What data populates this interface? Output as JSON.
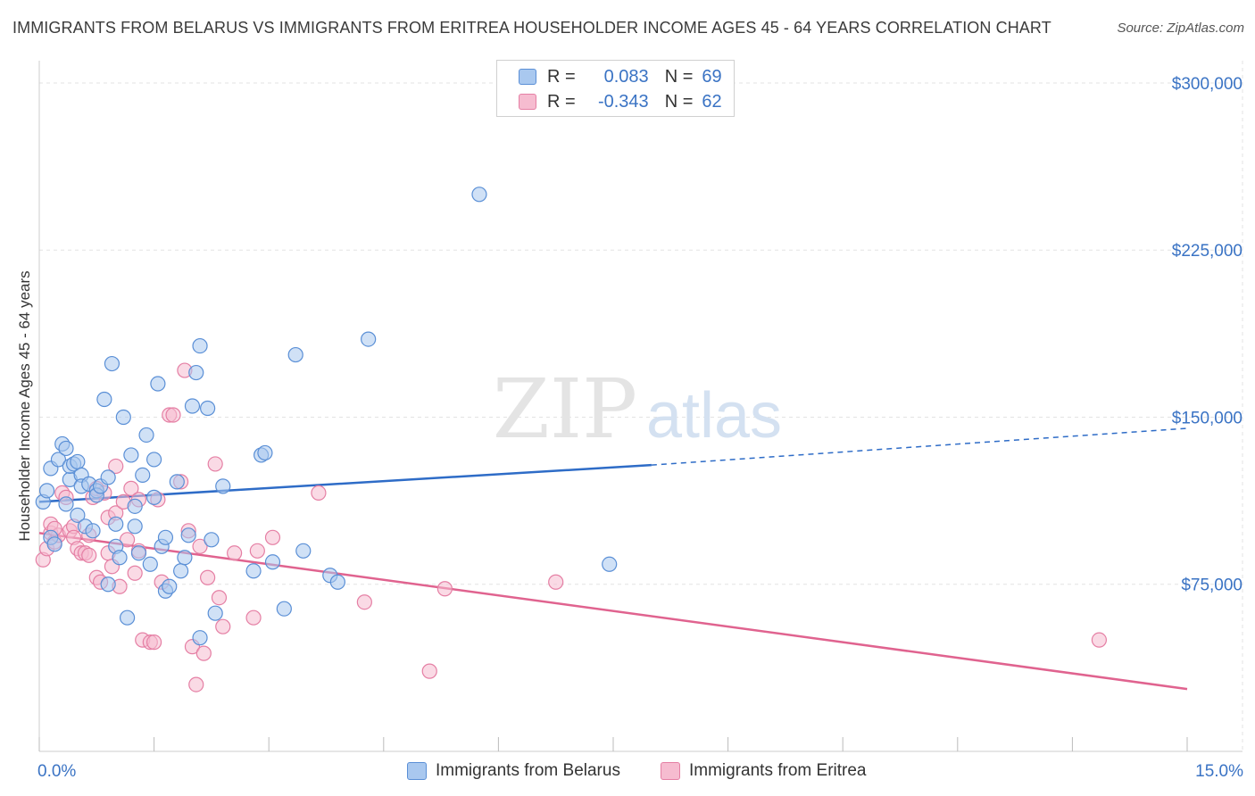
{
  "header": {
    "title": "IMMIGRANTS FROM BELARUS VS IMMIGRANTS FROM ERITREA HOUSEHOLDER INCOME AGES 45 - 64 YEARS CORRELATION CHART",
    "source": "Source: ZipAtlas.com"
  },
  "legend": {
    "belarus": {
      "r_label": "R =",
      "r_value": "0.083",
      "n_label": "N =",
      "n_value": "69"
    },
    "eritrea": {
      "r_label": "R =",
      "r_value": "-0.343",
      "n_label": "N =",
      "n_value": "62"
    }
  },
  "bottom_legend": {
    "belarus": "Immigrants from Belarus",
    "eritrea": "Immigrants from Eritrea"
  },
  "watermark": {
    "zip": "ZIP",
    "atlas": "atlas"
  },
  "colors": {
    "belarus_fill": "#a9c8ef",
    "belarus_stroke": "#5a8fd6",
    "belarus_line": "#2e6cc7",
    "eritrea_fill": "#f6bcd0",
    "eritrea_stroke": "#e57fa4",
    "eritrea_line": "#e0638f",
    "tick_text": "#3a73c4"
  },
  "chart_data": {
    "type": "scatter",
    "title": "IMMIGRANTS FROM BELARUS VS IMMIGRANTS FROM ERITREA HOUSEHOLDER INCOME AGES 45 - 64 YEARS CORRELATION CHART",
    "xlabel": "",
    "ylabel": "Householder Income Ages 45 - 64 years",
    "xlim": [
      0,
      15
    ],
    "ylim": [
      0,
      310000
    ],
    "x_tick_labels": [
      "0.0%",
      "15.0%"
    ],
    "y_ticks": [
      {
        "value": 75000,
        "label": "$75,000"
      },
      {
        "value": 150000,
        "label": "$150,000"
      },
      {
        "value": 225000,
        "label": "$225,000"
      },
      {
        "value": 300000,
        "label": "$300,000"
      }
    ],
    "grid": true,
    "legend_position": "top-center",
    "series": [
      {
        "name": "Immigrants from Belarus",
        "key": "belarus",
        "r": 0.083,
        "n": 69,
        "trend": {
          "x0": 0,
          "y0": 112000,
          "x1": 8.0,
          "y1": 128500,
          "dashed_to_x": 15,
          "dashed_to_y": 145000
        },
        "points": [
          [
            0.05,
            112000
          ],
          [
            0.1,
            117000
          ],
          [
            0.15,
            96000
          ],
          [
            0.2,
            93000
          ],
          [
            0.15,
            127000
          ],
          [
            0.25,
            131000
          ],
          [
            0.3,
            138000
          ],
          [
            0.35,
            136000
          ],
          [
            0.35,
            111000
          ],
          [
            0.4,
            122000
          ],
          [
            0.4,
            128000
          ],
          [
            0.45,
            129000
          ],
          [
            0.5,
            130000
          ],
          [
            0.5,
            106000
          ],
          [
            0.55,
            124000
          ],
          [
            0.55,
            119000
          ],
          [
            0.6,
            101000
          ],
          [
            0.65,
            120000
          ],
          [
            0.7,
            99000
          ],
          [
            0.75,
            117000
          ],
          [
            0.75,
            115000
          ],
          [
            0.8,
            119000
          ],
          [
            0.85,
            158000
          ],
          [
            0.9,
            123000
          ],
          [
            0.9,
            75000
          ],
          [
            0.95,
            174000
          ],
          [
            1.0,
            102000
          ],
          [
            1.0,
            92000
          ],
          [
            1.05,
            87000
          ],
          [
            1.1,
            150000
          ],
          [
            1.15,
            60000
          ],
          [
            1.2,
            133000
          ],
          [
            1.25,
            110000
          ],
          [
            1.25,
            101000
          ],
          [
            1.3,
            89000
          ],
          [
            1.35,
            124000
          ],
          [
            1.4,
            142000
          ],
          [
            1.45,
            84000
          ],
          [
            1.5,
            131000
          ],
          [
            1.5,
            114000
          ],
          [
            1.55,
            165000
          ],
          [
            1.6,
            92000
          ],
          [
            1.65,
            96000
          ],
          [
            1.65,
            72000
          ],
          [
            1.7,
            74000
          ],
          [
            1.8,
            121000
          ],
          [
            1.85,
            81000
          ],
          [
            1.9,
            87000
          ],
          [
            1.95,
            97000
          ],
          [
            2.0,
            155000
          ],
          [
            2.05,
            170000
          ],
          [
            2.1,
            182000
          ],
          [
            2.1,
            51000
          ],
          [
            2.2,
            154000
          ],
          [
            2.25,
            95000
          ],
          [
            2.3,
            62000
          ],
          [
            2.4,
            119000
          ],
          [
            2.8,
            81000
          ],
          [
            2.9,
            133000
          ],
          [
            2.95,
            134000
          ],
          [
            3.05,
            85000
          ],
          [
            3.2,
            64000
          ],
          [
            3.35,
            178000
          ],
          [
            3.45,
            90000
          ],
          [
            3.8,
            79000
          ],
          [
            3.9,
            76000
          ],
          [
            4.3,
            185000
          ],
          [
            5.75,
            250000
          ],
          [
            7.45,
            84000
          ]
        ]
      },
      {
        "name": "Immigrants from Eritrea",
        "key": "eritrea",
        "r": -0.343,
        "n": 62,
        "trend": {
          "x0": 0,
          "y0": 98000,
          "x1": 15,
          "y1": 28000
        },
        "points": [
          [
            0.05,
            86000
          ],
          [
            0.1,
            91000
          ],
          [
            0.15,
            98000
          ],
          [
            0.15,
            102000
          ],
          [
            0.2,
            94000
          ],
          [
            0.25,
            97000
          ],
          [
            0.3,
            116000
          ],
          [
            0.35,
            114000
          ],
          [
            0.4,
            99000
          ],
          [
            0.45,
            101000
          ],
          [
            0.45,
            96000
          ],
          [
            0.5,
            91000
          ],
          [
            0.55,
            89000
          ],
          [
            0.6,
            89000
          ],
          [
            0.65,
            97000
          ],
          [
            0.65,
            88000
          ],
          [
            0.7,
            114000
          ],
          [
            0.75,
            118000
          ],
          [
            0.75,
            78000
          ],
          [
            0.8,
            76000
          ],
          [
            0.85,
            116000
          ],
          [
            0.9,
            89000
          ],
          [
            0.9,
            105000
          ],
          [
            0.95,
            83000
          ],
          [
            1.0,
            128000
          ],
          [
            1.0,
            107000
          ],
          [
            1.05,
            74000
          ],
          [
            1.1,
            112000
          ],
          [
            1.15,
            95000
          ],
          [
            1.2,
            118000
          ],
          [
            1.25,
            80000
          ],
          [
            1.3,
            113000
          ],
          [
            1.3,
            90000
          ],
          [
            1.35,
            50000
          ],
          [
            1.45,
            49000
          ],
          [
            1.5,
            49000
          ],
          [
            1.55,
            113000
          ],
          [
            1.6,
            76000
          ],
          [
            1.7,
            151000
          ],
          [
            1.75,
            151000
          ],
          [
            1.85,
            121000
          ],
          [
            1.9,
            171000
          ],
          [
            1.95,
            99000
          ],
          [
            2.0,
            47000
          ],
          [
            2.05,
            30000
          ],
          [
            2.1,
            92000
          ],
          [
            2.15,
            44000
          ],
          [
            2.2,
            78000
          ],
          [
            2.3,
            129000
          ],
          [
            2.35,
            69000
          ],
          [
            2.4,
            56000
          ],
          [
            2.55,
            89000
          ],
          [
            2.8,
            60000
          ],
          [
            2.85,
            90000
          ],
          [
            3.05,
            96000
          ],
          [
            3.65,
            116000
          ],
          [
            4.25,
            67000
          ],
          [
            5.1,
            36000
          ],
          [
            5.3,
            73000
          ],
          [
            6.75,
            76000
          ],
          [
            13.85,
            50000
          ],
          [
            0.2,
            100000
          ]
        ]
      }
    ]
  }
}
